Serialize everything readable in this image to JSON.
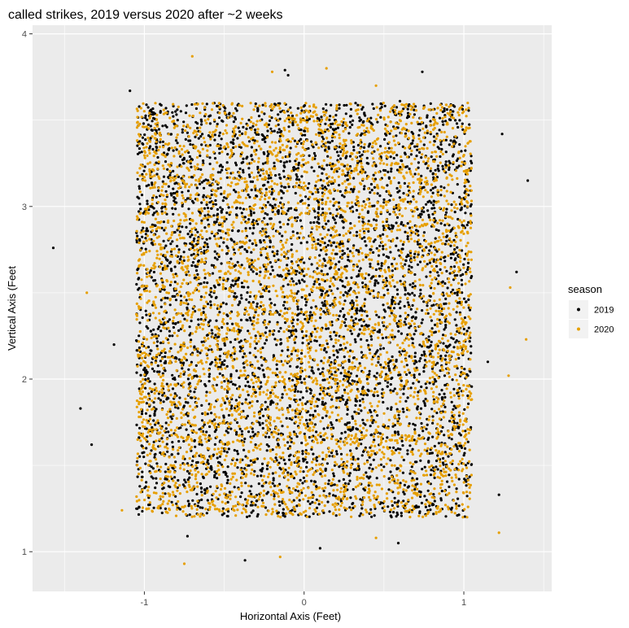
{
  "chart_data": {
    "type": "scatter",
    "title": "called strikes, 2019 versus 2020 after ~2 weeks",
    "xlabel": "Horizontal Axis (Feet)",
    "ylabel": "Vertical Axis (Feet",
    "xlim": [
      -1.7,
      1.55
    ],
    "ylim": [
      0.77,
      4.05
    ],
    "x_ticks": [
      -1,
      0,
      1
    ],
    "x_tick_labels": [
      "-1",
      "0",
      "1"
    ],
    "y_ticks": [
      1,
      2,
      3,
      4
    ],
    "y_tick_labels": [
      "1",
      "2",
      "3",
      "4"
    ],
    "grid": true,
    "legend": {
      "title": "season",
      "placement": "right",
      "entries": [
        {
          "label": "2019",
          "color": "#000000"
        },
        {
          "label": "2020",
          "color": "#E69F00"
        }
      ]
    },
    "series": [
      {
        "name": "2019",
        "color": "#000000",
        "points": [
          [
            -1.57,
            2.76
          ],
          [
            -1.4,
            1.83
          ],
          [
            -1.09,
            3.67
          ],
          [
            1.24,
            3.42
          ],
          [
            1.4,
            3.15
          ],
          [
            1.33,
            2.62
          ],
          [
            -0.37,
            0.95
          ],
          [
            0.1,
            1.02
          ],
          [
            0.59,
            1.05
          ],
          [
            -0.73,
            1.09
          ],
          [
            -0.12,
            3.79
          ],
          [
            0.74,
            3.78
          ],
          [
            1.22,
            1.33
          ],
          [
            1.15,
            2.1
          ],
          [
            -1.33,
            1.62
          ],
          [
            -1.19,
            2.2
          ],
          [
            -0.95,
            3.44
          ],
          [
            0.6,
            3.61
          ],
          [
            -0.1,
            3.76
          ],
          [
            0.95,
            1.62
          ]
        ]
      },
      {
        "name": "2020",
        "color": "#E69F00",
        "points": [
          [
            -0.7,
            3.87
          ],
          [
            0.14,
            3.8
          ],
          [
            -0.75,
            0.93
          ],
          [
            -0.15,
            0.97
          ],
          [
            1.22,
            1.11
          ],
          [
            1.39,
            2.23
          ],
          [
            1.29,
            2.53
          ],
          [
            -1.14,
            1.24
          ],
          [
            1.28,
            2.02
          ],
          [
            -0.2,
            3.78
          ],
          [
            0.45,
            3.7
          ],
          [
            1.02,
            1.2
          ],
          [
            -1.0,
            3.46
          ],
          [
            0.45,
            1.08
          ],
          [
            -1.36,
            2.5
          ]
        ]
      }
    ],
    "cloud": {
      "x_range": [
        -1.05,
        1.05
      ],
      "y_range": [
        1.2,
        3.6
      ]
    }
  }
}
